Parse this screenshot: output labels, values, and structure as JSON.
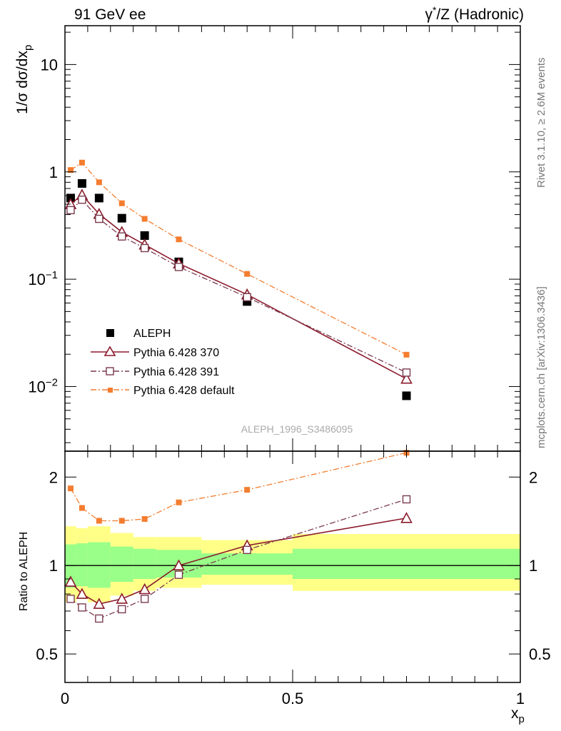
{
  "header": {
    "left_title": "91 GeV ee",
    "right_title_main": "γ",
    "right_title_sup": "*",
    "right_title_rest": "/Z (Hadronic)"
  },
  "side": {
    "rivet_label": "Rivet 3.1.10, ≥ 2.6M events",
    "mcplots_label": "mcplots.cern.ch [arXiv:1306.3436]"
  },
  "analysis_label": "ALEPH_1996_S3486095",
  "axes": {
    "y_label_main": "1/σ dσ/dx",
    "y_label_sub": "p",
    "ratio_label": "Ratio to ALEPH",
    "x_label_main": "x",
    "x_label_sub": "p"
  },
  "chart_data": [
    {
      "type": "scatter",
      "panel": "main",
      "yscale": "log",
      "xlim": [
        0,
        1
      ],
      "ylim": [
        0.0025,
        23
      ],
      "ytick_labels": [
        "10⁻²",
        "10⁻¹",
        "1",
        "10"
      ],
      "x": [
        0.0125,
        0.0375,
        0.075,
        0.125,
        0.175,
        0.25,
        0.4,
        0.75
      ],
      "series": [
        {
          "name": "ALEPH",
          "color": "#000000",
          "marker": "filled-square",
          "line": "none",
          "values": [
            0.57,
            0.78,
            0.57,
            0.37,
            0.255,
            0.145,
            0.062,
            0.0082
          ]
        },
        {
          "name": "Pythia 6.428 370",
          "color": "#8b1a2b",
          "marker": "open-triangle",
          "line": "solid",
          "values": [
            0.5,
            0.61,
            0.405,
            0.275,
            0.21,
            0.14,
            0.072,
            0.0118
          ]
        },
        {
          "name": "Pythia 6.428 391",
          "color": "#7a3b4f",
          "marker": "open-square",
          "line": "dash-dot",
          "values": [
            0.44,
            0.55,
            0.365,
            0.25,
            0.195,
            0.13,
            0.068,
            0.0135
          ]
        },
        {
          "name": "Pythia 6.428 default",
          "color": "#f47d30",
          "marker": "small-filled-square",
          "line": "dash-dot",
          "values": [
            1.04,
            1.22,
            0.8,
            0.51,
            0.365,
            0.235,
            0.112,
            0.0198
          ]
        }
      ]
    },
    {
      "type": "line",
      "panel": "ratio",
      "yscale": "log",
      "xlim": [
        0,
        1
      ],
      "ylim": [
        0.4,
        2.45
      ],
      "ytick_labels": [
        "0.5",
        "1",
        "2"
      ],
      "xtick_labels": [
        "0",
        "0.5",
        "1"
      ],
      "x": [
        0.0125,
        0.0375,
        0.075,
        0.125,
        0.175,
        0.25,
        0.4,
        0.75
      ],
      "bands": {
        "edges": [
          0,
          0.025,
          0.05,
          0.1,
          0.15,
          0.2,
          0.3,
          0.5,
          1.0
        ],
        "yellow_low": [
          0.75,
          0.77,
          0.75,
          0.79,
          0.82,
          0.84,
          0.86,
          0.82
        ],
        "yellow_high": [
          1.36,
          1.34,
          1.36,
          1.29,
          1.25,
          1.25,
          1.22,
          1.28
        ],
        "green_low": [
          0.84,
          0.85,
          0.84,
          0.88,
          0.9,
          0.91,
          0.93,
          0.9
        ],
        "green_high": [
          1.18,
          1.19,
          1.2,
          1.16,
          1.14,
          1.13,
          1.1,
          1.14
        ]
      },
      "series": [
        {
          "name": "Pythia 6.428 370",
          "color": "#8b1a2b",
          "marker": "open-triangle",
          "line": "solid",
          "values": [
            0.88,
            0.8,
            0.74,
            0.77,
            0.83,
            1.0,
            1.17,
            1.45
          ]
        },
        {
          "name": "Pythia 6.428 391",
          "color": "#7a3b4f",
          "marker": "open-square",
          "line": "dash-dot",
          "values": [
            0.77,
            0.72,
            0.66,
            0.71,
            0.77,
            0.93,
            1.13,
            1.68
          ]
        },
        {
          "name": "Pythia 6.428 default",
          "color": "#f47d30",
          "marker": "small-filled-square",
          "line": "dash-dot",
          "values": [
            1.83,
            1.57,
            1.42,
            1.42,
            1.44,
            1.64,
            1.81,
            2.42
          ]
        }
      ]
    }
  ]
}
